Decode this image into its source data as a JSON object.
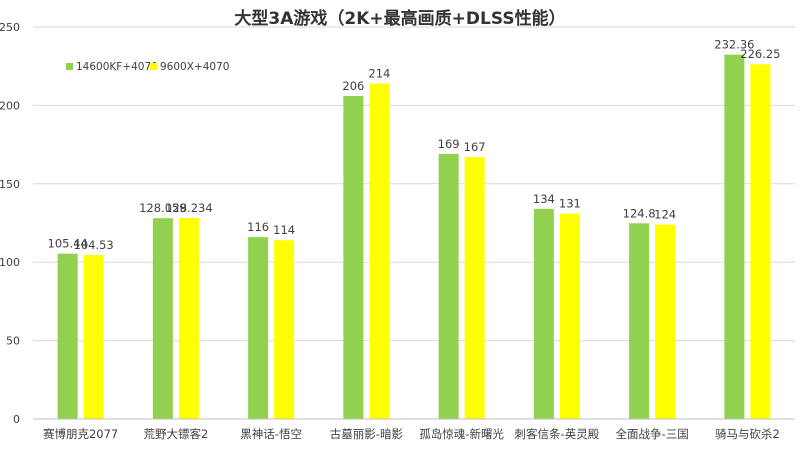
{
  "chart_data": {
    "type": "bar",
    "title": "大型3A游戏（2K+最高画质+DLSS性能）",
    "xlabel": "",
    "ylabel": "",
    "ylim": [
      0,
      250
    ],
    "yticks": [
      0,
      50,
      100,
      150,
      200,
      250
    ],
    "grid": true,
    "legend_position": "top-left",
    "categories": [
      "赛博朋克2077",
      "荒野大镖客2",
      "黑神话-悟空",
      "古墓丽影-暗影",
      "孤岛惊魂-新曙光",
      "刺客信条-英灵殿",
      "全面战争-三国",
      "骑马与砍杀2"
    ],
    "series": [
      {
        "name": "14600KF+4070",
        "color": "#92d050",
        "values": [
          105.44,
          128.059,
          116,
          206,
          169,
          134,
          124.8,
          232.36
        ],
        "labels": [
          "105.44",
          "128.059",
          "116",
          "206",
          "169",
          "134",
          "124.8",
          "232.36"
        ]
      },
      {
        "name": "9600X+4070",
        "color": "#ffff00",
        "values": [
          104.53,
          128.234,
          114,
          214,
          167,
          131,
          124,
          226.25
        ],
        "labels": [
          "104.53",
          "128.234",
          "114",
          "214",
          "167",
          "131",
          "124",
          "226.25"
        ]
      }
    ]
  }
}
